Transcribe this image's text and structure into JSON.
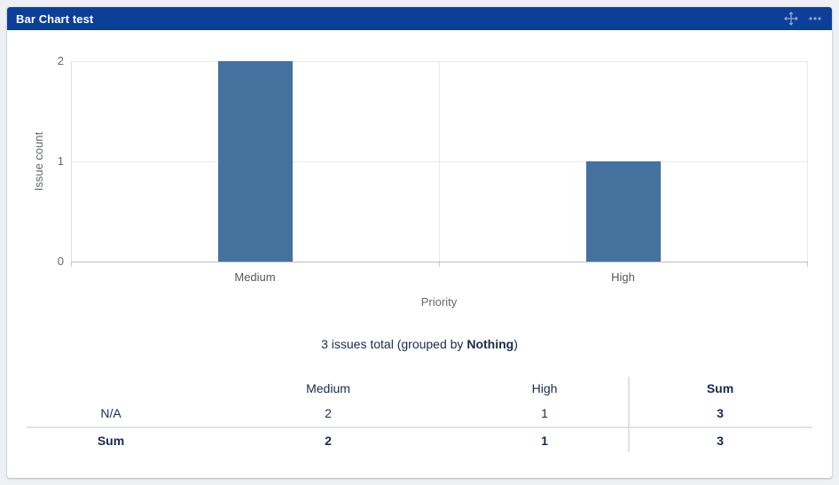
{
  "page": {
    "background": "#eef0f4"
  },
  "gadget": {
    "title": "Bar Chart test",
    "header_color": "#0d3f99",
    "icons": [
      {
        "name": "move-icon"
      },
      {
        "name": "more-icon"
      }
    ]
  },
  "chart_data": {
    "type": "bar",
    "categories": [
      "Medium",
      "High"
    ],
    "values": [
      2,
      1
    ],
    "title": "",
    "xlabel": "Priority",
    "ylabel": "Issue count",
    "ylim": [
      0,
      2
    ],
    "yticks": [
      0,
      1,
      2
    ],
    "bar_color": "#45719e",
    "grid": true,
    "legend": "none"
  },
  "summary": {
    "prefix": "3 issues total (grouped by ",
    "bold": "Nothing",
    "suffix": ")"
  },
  "table": {
    "headers": [
      "",
      "Medium",
      "High",
      "Sum"
    ],
    "rows": [
      {
        "label": "N/A",
        "medium": "2",
        "high": "1",
        "sum": "3"
      },
      {
        "label": "Sum",
        "medium": "2",
        "high": "1",
        "sum": "3"
      }
    ]
  }
}
